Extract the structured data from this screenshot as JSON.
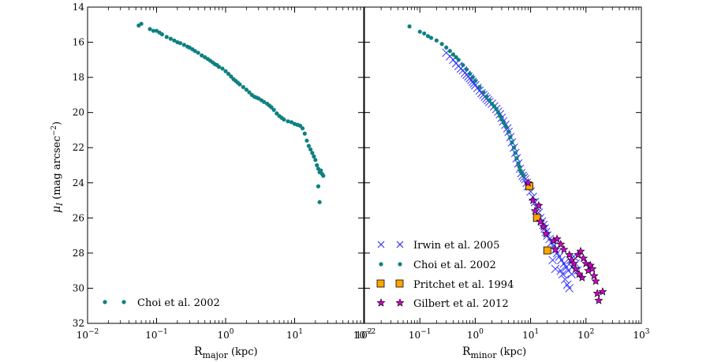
{
  "colors": {
    "choi": "#0f8080",
    "irwin": "#3333ff",
    "pritchet": "#ffa500",
    "gilbert": "#cc00cc"
  },
  "chart_data": [
    {
      "type": "scatter",
      "panel": "left",
      "xlabel": "R_major (kpc)",
      "xlabel_main": "R",
      "xlabel_sub": "major",
      "xlabel_unit": " (kpc)",
      "ylabel": "μ_I (mag arcsec^-2)",
      "ylabel_main": "μ",
      "ylabel_sub": "I",
      "ylabel_unit": " (mag arcsec",
      "ylabel_exp": "−2",
      "ylabel_close": ")",
      "x_scale": "log",
      "xlim": [
        0.01,
        100
      ],
      "ylim": [
        32,
        14
      ],
      "y_inverted": true,
      "x_ticks": [
        {
          "base": "10",
          "exp": "−2"
        },
        {
          "base": "10",
          "exp": "−1"
        },
        {
          "base": "10",
          "exp": "0"
        },
        {
          "base": "10",
          "exp": "1"
        },
        {
          "base": "10",
          "exp": "2"
        }
      ],
      "y_ticks": [
        "14",
        "16",
        "18",
        "20",
        "22",
        "24",
        "26",
        "28",
        "30",
        "32"
      ],
      "legend_location": "lower-left",
      "series": [
        {
          "name": "Choi et al. 2002",
          "marker": "circle",
          "points": [
            [
              0.055,
              15.05
            ],
            [
              0.06,
              14.95
            ],
            [
              0.08,
              15.25
            ],
            [
              0.09,
              15.35
            ],
            [
              0.1,
              15.35
            ],
            [
              0.11,
              15.45
            ],
            [
              0.12,
              15.55
            ],
            [
              0.14,
              15.7
            ],
            [
              0.16,
              15.8
            ],
            [
              0.18,
              15.9
            ],
            [
              0.2,
              16.0
            ],
            [
              0.22,
              16.05
            ],
            [
              0.25,
              16.15
            ],
            [
              0.28,
              16.25
            ],
            [
              0.3,
              16.3
            ],
            [
              0.33,
              16.4
            ],
            [
              0.36,
              16.5
            ],
            [
              0.4,
              16.6
            ],
            [
              0.45,
              16.75
            ],
            [
              0.5,
              16.85
            ],
            [
              0.55,
              16.95
            ],
            [
              0.6,
              17.05
            ],
            [
              0.65,
              17.15
            ],
            [
              0.7,
              17.25
            ],
            [
              0.75,
              17.3
            ],
            [
              0.8,
              17.4
            ],
            [
              0.9,
              17.5
            ],
            [
              1.0,
              17.65
            ],
            [
              1.1,
              17.8
            ],
            [
              1.2,
              17.95
            ],
            [
              1.3,
              18.1
            ],
            [
              1.4,
              18.2
            ],
            [
              1.5,
              18.3
            ],
            [
              1.6,
              18.4
            ],
            [
              1.8,
              18.55
            ],
            [
              2.0,
              18.7
            ],
            [
              2.2,
              18.85
            ],
            [
              2.4,
              19.0
            ],
            [
              2.6,
              19.1
            ],
            [
              2.8,
              19.15
            ],
            [
              3.0,
              19.2
            ],
            [
              3.3,
              19.3
            ],
            [
              3.6,
              19.4
            ],
            [
              4.0,
              19.5
            ],
            [
              4.3,
              19.6
            ],
            [
              4.6,
              19.7
            ],
            [
              5.0,
              19.85
            ],
            [
              5.5,
              20.05
            ],
            [
              6.0,
              20.2
            ],
            [
              6.5,
              20.3
            ],
            [
              7.0,
              20.4
            ],
            [
              8.0,
              20.5
            ],
            [
              9.0,
              20.55
            ],
            [
              10.0,
              20.65
            ],
            [
              11.0,
              20.7
            ],
            [
              12.0,
              20.75
            ],
            [
              13.0,
              20.9
            ],
            [
              14.0,
              21.2
            ],
            [
              15.0,
              21.6
            ],
            [
              16.0,
              21.9
            ],
            [
              17.0,
              22.1
            ],
            [
              18.0,
              22.3
            ],
            [
              19.0,
              22.5
            ],
            [
              20.0,
              22.7
            ],
            [
              21.0,
              23.0
            ],
            [
              22.0,
              23.2
            ],
            [
              23.0,
              23.4
            ],
            [
              24.0,
              23.3
            ],
            [
              25.0,
              23.5
            ],
            [
              26.0,
              23.6
            ],
            [
              22.0,
              24.2
            ],
            [
              23.0,
              25.1
            ]
          ]
        }
      ]
    },
    {
      "type": "scatter",
      "panel": "right",
      "xlabel": "R_minor (kpc)",
      "xlabel_main": "R",
      "xlabel_sub": "minor",
      "xlabel_unit": " (kpc)",
      "x_scale": "log",
      "xlim": [
        0.01,
        1000
      ],
      "ylim": [
        32,
        14
      ],
      "y_inverted": true,
      "x_ticks": [
        {
          "base": "10",
          "exp": "−2"
        },
        {
          "base": "10",
          "exp": "−1"
        },
        {
          "base": "10",
          "exp": "0"
        },
        {
          "base": "10",
          "exp": "1"
        },
        {
          "base": "10",
          "exp": "2"
        },
        {
          "base": "10",
          "exp": "3"
        }
      ],
      "legend_location": "lower-left",
      "series": [
        {
          "name": "Irwin et al. 2005",
          "marker": "x",
          "points": [
            [
              0.3,
              16.6
            ],
            [
              0.35,
              16.8
            ],
            [
              0.4,
              17.0
            ],
            [
              0.45,
              17.2
            ],
            [
              0.5,
              17.35
            ],
            [
              0.55,
              17.5
            ],
            [
              0.6,
              17.6
            ],
            [
              0.65,
              17.75
            ],
            [
              0.7,
              17.85
            ],
            [
              0.75,
              17.95
            ],
            [
              0.8,
              18.05
            ],
            [
              0.85,
              18.15
            ],
            [
              0.9,
              18.25
            ],
            [
              0.95,
              18.35
            ],
            [
              1.0,
              18.45
            ],
            [
              1.1,
              18.6
            ],
            [
              1.2,
              18.75
            ],
            [
              1.3,
              18.9
            ],
            [
              1.4,
              19.0
            ],
            [
              1.5,
              19.1
            ],
            [
              1.6,
              19.2
            ],
            [
              1.7,
              19.3
            ],
            [
              1.8,
              19.4
            ],
            [
              2.0,
              19.5
            ],
            [
              2.2,
              19.65
            ],
            [
              2.4,
              19.8
            ],
            [
              2.6,
              19.95
            ],
            [
              2.8,
              20.1
            ],
            [
              3.0,
              20.3
            ],
            [
              3.2,
              20.5
            ],
            [
              3.5,
              20.7
            ],
            [
              3.8,
              20.9
            ],
            [
              4.0,
              21.1
            ],
            [
              4.3,
              21.4
            ],
            [
              4.6,
              21.7
            ],
            [
              5.0,
              22.0
            ],
            [
              5.3,
              22.3
            ],
            [
              5.6,
              22.6
            ],
            [
              6.0,
              22.9
            ],
            [
              6.4,
              23.2
            ],
            [
              6.8,
              23.45
            ],
            [
              7.2,
              23.6
            ],
            [
              7.6,
              23.7
            ],
            [
              8.0,
              23.8
            ],
            [
              8.5,
              24.0
            ],
            [
              9.0,
              24.2
            ],
            [
              10.0,
              24.5
            ],
            [
              11.0,
              24.8
            ],
            [
              12.0,
              25.1
            ],
            [
              13.0,
              25.4
            ],
            [
              14.0,
              25.7
            ],
            [
              15.0,
              26.0
            ],
            [
              16.0,
              26.2
            ],
            [
              17.0,
              26.4
            ],
            [
              18.0,
              26.6
            ],
            [
              19.0,
              26.8
            ],
            [
              20.0,
              27.0
            ],
            [
              22.0,
              27.2
            ],
            [
              24.0,
              27.4
            ],
            [
              26.0,
              27.6
            ],
            [
              28.0,
              27.8
            ],
            [
              30.0,
              28.0
            ],
            [
              33.0,
              28.2
            ],
            [
              36.0,
              28.4
            ],
            [
              40.0,
              28.6
            ],
            [
              44.0,
              28.8
            ],
            [
              48.0,
              29.0
            ],
            [
              52.0,
              28.4
            ],
            [
              56.0,
              28.8
            ],
            [
              60.0,
              28.2
            ],
            [
              38.0,
              29.2
            ],
            [
              42.0,
              29.5
            ],
            [
              46.0,
              29.8
            ],
            [
              50.0,
              30.0
            ],
            [
              35.0,
              29.0
            ],
            [
              55.0,
              29.2
            ],
            [
              65.0,
              28.6
            ],
            [
              70.0,
              29.0
            ],
            [
              25.0,
              28.4
            ],
            [
              28.0,
              28.9
            ]
          ]
        },
        {
          "name": "Choi et al. 2002",
          "marker": "circle",
          "points": [
            [
              0.065,
              15.1
            ],
            [
              0.1,
              15.4
            ],
            [
              0.12,
              15.5
            ],
            [
              0.14,
              15.65
            ],
            [
              0.16,
              15.75
            ],
            [
              0.2,
              15.9
            ],
            [
              0.25,
              16.1
            ],
            [
              0.3,
              16.3
            ],
            [
              0.35,
              16.5
            ],
            [
              0.4,
              16.7
            ],
            [
              0.45,
              16.85
            ],
            [
              0.5,
              17.0
            ],
            [
              0.6,
              17.3
            ],
            [
              0.7,
              17.55
            ],
            [
              0.8,
              17.8
            ],
            [
              0.9,
              18.0
            ],
            [
              1.0,
              18.2
            ],
            [
              1.2,
              18.55
            ],
            [
              1.4,
              18.85
            ],
            [
              1.6,
              19.1
            ],
            [
              1.8,
              19.3
            ],
            [
              2.0,
              19.5
            ],
            [
              2.2,
              19.65
            ],
            [
              2.4,
              19.8
            ],
            [
              2.6,
              20.0
            ],
            [
              2.8,
              20.2
            ],
            [
              3.0,
              20.4
            ],
            [
              3.3,
              20.6
            ],
            [
              3.6,
              20.8
            ],
            [
              4.0,
              21.1
            ],
            [
              4.3,
              21.4
            ],
            [
              4.6,
              21.7
            ],
            [
              5.0,
              22.0
            ],
            [
              5.3,
              22.3
            ],
            [
              5.6,
              22.6
            ],
            [
              6.0,
              22.9
            ],
            [
              6.3,
              23.1
            ],
            [
              6.6,
              23.3
            ],
            [
              7.0,
              23.45
            ],
            [
              7.5,
              23.6
            ]
          ]
        },
        {
          "name": "Pritchet et al. 1994",
          "marker": "square",
          "points": [
            [
              9.5,
              24.2
            ],
            [
              13.0,
              26.0
            ],
            [
              20.0,
              27.85
            ]
          ]
        },
        {
          "name": "Gilbert et al. 2012",
          "marker": "star",
          "points": [
            [
              9.0,
              24.0
            ],
            [
              11.0,
              25.0
            ],
            [
              14.0,
              25.3
            ],
            [
              12.0,
              25.6
            ],
            [
              15.0,
              26.2
            ],
            [
              17.0,
              26.5
            ],
            [
              19.0,
              26.9
            ],
            [
              26.0,
              27.3
            ],
            [
              30.0,
              27.2
            ],
            [
              35.0,
              27.5
            ],
            [
              40.0,
              27.8
            ],
            [
              28.0,
              27.8
            ],
            [
              50.0,
              28.1
            ],
            [
              55.0,
              28.4
            ],
            [
              60.0,
              28.6
            ],
            [
              65.0,
              28.9
            ],
            [
              72.0,
              28.1
            ],
            [
              80.0,
              27.9
            ],
            [
              90.0,
              28.3
            ],
            [
              100.0,
              28.6
            ],
            [
              110.0,
              29.0
            ],
            [
              120.0,
              28.7
            ],
            [
              130.0,
              28.9
            ],
            [
              140.0,
              29.3
            ],
            [
              150.0,
              29.6
            ],
            [
              160.0,
              30.3
            ],
            [
              170.0,
              30.7
            ],
            [
              200.0,
              30.2
            ],
            [
              85.0,
              29.4
            ],
            [
              75.0,
              29.2
            ]
          ]
        }
      ]
    }
  ]
}
